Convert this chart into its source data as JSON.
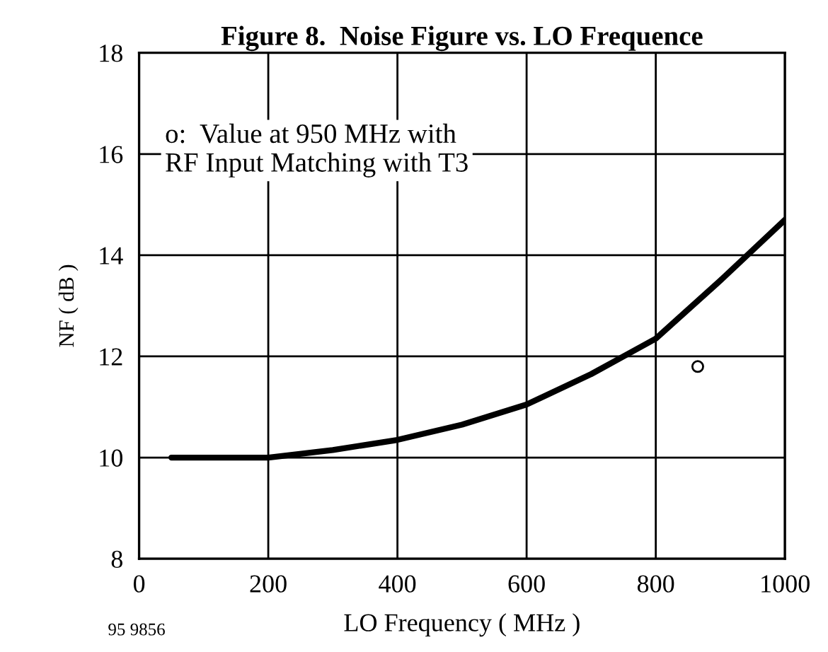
{
  "chart_data": {
    "type": "line",
    "title": "Figure 8.  Noise Figure vs. LO Frequence",
    "xlabel": "LO Frequency ( MHz )",
    "ylabel": "NF ( dB )",
    "annotations": [
      "o:  Value at 950 MHz with\nRF Input Matching with T3",
      "95 9856"
    ],
    "series": [
      {
        "color": "#000000",
        "x": [
          50,
          200,
          300,
          400,
          500,
          600,
          700,
          800,
          900,
          1000
        ],
        "values": [
          10,
          10,
          10.15,
          10.35,
          10.65,
          11.05,
          11.65,
          12.35,
          13.5,
          14.7
        ]
      },
      {
        "type": "scatter",
        "marker": "circle",
        "color": "#000000",
        "x": [
          865
        ],
        "values": [
          11.8
        ]
      }
    ],
    "xlim": [
      0,
      1000
    ],
    "xticks": [
      0,
      200,
      400,
      600,
      800,
      1000
    ],
    "ylim": [
      8,
      18
    ],
    "yticks": [
      8,
      10,
      12,
      14,
      16,
      18
    ],
    "grid": true,
    "legend": false
  }
}
